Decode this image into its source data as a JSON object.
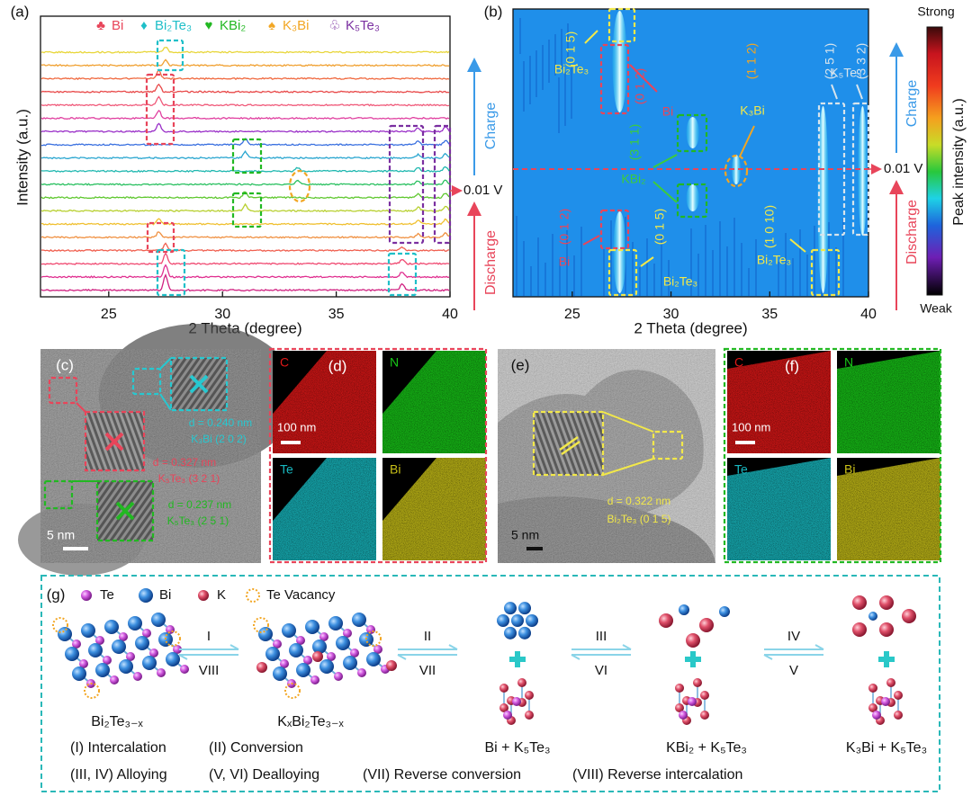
{
  "panel_a": {
    "label": "(a)",
    "legend": [
      {
        "symbol": "♣",
        "name": "Bi",
        "color": "#e8455a"
      },
      {
        "symbol": "♦",
        "name": "Bi₂Te₃",
        "color": "#1fbfc8"
      },
      {
        "symbol": "♥",
        "name": "KBi₂",
        "color": "#22b822"
      },
      {
        "symbol": "♠",
        "name": "K₃Bi",
        "color": "#f2a623"
      },
      {
        "symbol": "♧",
        "name": "K₅Te₃",
        "color": "#7a2fa0"
      }
    ],
    "xlabel": "2 Theta (degree)",
    "ylabel": "Intensity (a.u.)",
    "xlim": [
      22,
      40
    ],
    "xticks": [
      25,
      30,
      35,
      40
    ],
    "curve_colors": [
      "#e8d63a",
      "#f0a030",
      "#f06a40",
      "#e84848",
      "#f05a7a",
      "#e040a0",
      "#9a30c8",
      "#3a70e0",
      "#2aa6d0",
      "#20b8b0",
      "#2ac060",
      "#60c830",
      "#b8d030",
      "#f0c030",
      "#f09040",
      "#f06050",
      "#f04870",
      "#e03090",
      "#d02080"
    ],
    "charge": "Charge",
    "discharge": "Discharge",
    "voltage": "0.01 V"
  },
  "panel_b": {
    "label": "(b)",
    "xlabel": "2 Theta (degree)",
    "xlim": [
      22,
      40
    ],
    "xticks": [
      25,
      30,
      35,
      40
    ],
    "annotations": [
      "(0 1 5)",
      "Bi₂Te₃",
      "(0 1 2)",
      "Bi",
      "(3 1 1)",
      "KBi₂",
      "(1 1 2)",
      "K₃Bi",
      "(2 5 1)",
      "(3 3 2)",
      "K₅Te₃",
      "(0 1 2)",
      "Bi",
      "(0 1 5)",
      "Bi₂Te₃",
      "(1 0 10)",
      "Bi₂Te₃"
    ],
    "colorbar": {
      "top": "Strong",
      "bottom": "Weak",
      "label": "Peak intensity (a.u.)"
    },
    "charge": "Charge",
    "discharge": "Discharge",
    "voltage": "0.01 V"
  },
  "panel_c": {
    "label": "(c)",
    "annotations": [
      "d = 0.240 nm",
      "K₃Bi (2 0 2)",
      "d = 0.327 nm",
      "K₅Te₃ (3 2 1)",
      "d = 0.237 nm",
      "K₅Te₃ (2 5 1)"
    ],
    "scale": "5 nm"
  },
  "panel_d": {
    "label": "(d)",
    "maps": [
      "C",
      "N",
      "Te",
      "Bi"
    ],
    "scale": "100 nm"
  },
  "panel_e": {
    "label": "(e)",
    "annotations": [
      "d = 0.322 nm",
      "Bi₂Te₃ (0 1 5)"
    ],
    "scale": "5 nm"
  },
  "panel_f": {
    "label": "(f)",
    "maps": [
      "C",
      "N",
      "Te",
      "Bi"
    ],
    "scale": "100 nm"
  },
  "panel_g": {
    "label": "(g)",
    "legend": [
      "Te",
      "Bi",
      "K",
      "Te Vacancy"
    ],
    "steps": [
      [
        "I",
        "VIII"
      ],
      [
        "II",
        "VII"
      ],
      [
        "III",
        "VI"
      ],
      [
        "IV",
        "V"
      ]
    ],
    "phases": [
      "Bi₂Te₃₋ₓ",
      "KₓBi₂Te₃₋ₓ",
      "Bi + K₅Te₃",
      "KBi₂ + K₅Te₃",
      "K₃Bi + K₅Te₃"
    ],
    "notes": [
      "(I) Intercalation",
      "(II) Conversion",
      "(III, IV) Alloying",
      "(V, VI) Dealloying",
      "(VII) Reverse conversion",
      "(VIII) Reverse intercalation"
    ]
  }
}
